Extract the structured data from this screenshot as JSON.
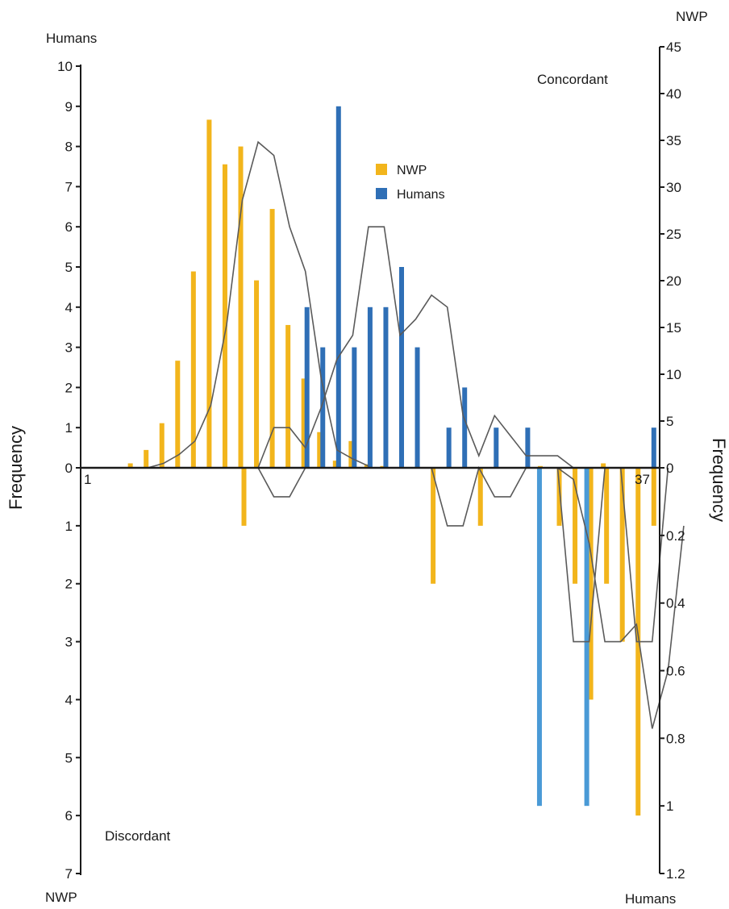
{
  "chart_data": {
    "type": "bar",
    "corner_labels": {
      "top_left": "Humans",
      "top_right": "NWP",
      "bottom_left": "NWP",
      "bottom_right": "Humans"
    },
    "annotations": {
      "concordant": "Concordant",
      "discordant": "Discordant"
    },
    "ylabel_left": "Frequency",
    "ylabel_right": "Frequency",
    "x_tick_labels": {
      "first": "1",
      "last": "37"
    },
    "legend": [
      {
        "name": "NWP",
        "color": "#f2b51c"
      },
      {
        "name": "Humans",
        "color": "#2f6fb6"
      }
    ],
    "axes": {
      "left_upper": {
        "range": [
          0,
          10
        ],
        "ticks": [
          "0",
          "1",
          "2",
          "3",
          "4",
          "5",
          "6",
          "7",
          "8",
          "9",
          "10"
        ]
      },
      "left_lower": {
        "range": [
          0,
          7
        ],
        "ticks": [
          "0",
          "1",
          "2",
          "3",
          "4",
          "5",
          "6",
          "7"
        ]
      },
      "right_upper": {
        "range": [
          0,
          45
        ],
        "ticks": [
          "0",
          "5",
          "10",
          "15",
          "20",
          "25",
          "30",
          "35",
          "40",
          "45"
        ]
      },
      "right_lower": {
        "range": [
          0,
          1.2
        ],
        "ticks": [
          "0",
          "0.2",
          "0.4",
          "0.6",
          "0.8",
          "1",
          "1.2"
        ]
      }
    },
    "colors": {
      "nwp": "#f2b51c",
      "humans_upper": "#2f6fb6",
      "humans_lower": "#4a9ad6",
      "trend": "#5a5a5a",
      "axis": "#1a1a1a"
    },
    "series": [
      {
        "name": "NWP",
        "concordant_values": [
          0,
          0,
          0,
          0.5,
          2,
          5,
          12,
          22,
          39,
          34,
          36,
          21,
          29,
          16,
          10,
          4,
          0.8,
          3,
          0.4,
          0.2,
          0,
          0,
          0,
          0,
          0,
          0,
          0,
          0,
          0,
          0.2,
          0,
          0,
          0,
          0.5,
          0,
          0,
          0
        ],
        "discordant_values": [
          0,
          0,
          0,
          0,
          0,
          0,
          0,
          0,
          0,
          0,
          1,
          0,
          0,
          0,
          0,
          0,
          0,
          0,
          0,
          0,
          0,
          0,
          2,
          0,
          0,
          1,
          0,
          0,
          0,
          0,
          1,
          2,
          4,
          2,
          3,
          6,
          1
        ]
      },
      {
        "name": "Humans",
        "concordant_values": [
          0,
          0,
          0,
          0,
          0,
          0,
          0,
          0,
          0,
          0,
          0,
          0,
          0,
          0,
          4,
          3,
          9,
          3,
          4,
          4,
          5,
          3,
          0,
          1,
          2,
          0,
          1,
          0,
          1,
          0,
          0,
          0,
          0,
          0,
          0,
          0,
          1
        ],
        "discordant_values": [
          0,
          0,
          0,
          0,
          0,
          0,
          0,
          0,
          0,
          0,
          0,
          0,
          0,
          0,
          0,
          0,
          0,
          0,
          0,
          0,
          0,
          0,
          0,
          0,
          0,
          0,
          0,
          0,
          0,
          1,
          0,
          0,
          1,
          0,
          0,
          0,
          0
        ]
      }
    ],
    "trend_lines": [
      {
        "series": "NWP concordant",
        "points": [
          [
            5,
            0
          ],
          [
            6,
            0.5
          ],
          [
            7,
            1.5
          ],
          [
            8,
            3
          ],
          [
            9,
            7
          ],
          [
            10,
            16
          ],
          [
            11,
            30
          ],
          [
            12,
            36.5
          ],
          [
            13,
            35
          ],
          [
            14,
            27
          ],
          [
            15,
            22
          ],
          [
            16,
            10
          ],
          [
            17,
            2
          ],
          [
            18,
            1
          ],
          [
            19,
            0.2
          ]
        ]
      },
      {
        "series": "Humans concordant",
        "points": [
          [
            11,
            0
          ],
          [
            12,
            0
          ],
          [
            13,
            1
          ],
          [
            14,
            1
          ],
          [
            15,
            0.5
          ],
          [
            16,
            1.5
          ],
          [
            17,
            2.7
          ],
          [
            18,
            3.3
          ],
          [
            19,
            6
          ],
          [
            20,
            6
          ],
          [
            21,
            3.3
          ],
          [
            22,
            3.7
          ],
          [
            23,
            4.3
          ],
          [
            24,
            4
          ],
          [
            25,
            1.3
          ],
          [
            26,
            0.3
          ],
          [
            27,
            1.3
          ],
          [
            28,
            0.8
          ],
          [
            29,
            0.3
          ],
          [
            30,
            0.3
          ],
          [
            31,
            0.3
          ],
          [
            32,
            0
          ]
        ]
      },
      {
        "series": "NWP discordant",
        "points": [
          [
            12,
            0
          ],
          [
            13,
            0.5
          ],
          [
            14,
            0.5
          ],
          [
            15,
            0
          ],
          [
            18,
            0
          ],
          [
            19,
            0
          ],
          [
            23,
            0
          ],
          [
            24,
            1
          ],
          [
            25,
            1
          ],
          [
            26,
            0
          ],
          [
            27,
            0.5
          ],
          [
            28,
            0.5
          ],
          [
            29,
            0
          ],
          [
            31,
            0
          ],
          [
            32,
            0.2
          ],
          [
            33,
            1.3
          ],
          [
            34,
            3
          ],
          [
            35,
            3
          ],
          [
            36,
            2.7
          ],
          [
            37,
            4.5
          ],
          [
            38,
            3.5
          ],
          [
            39,
            1
          ]
        ]
      },
      {
        "series": "Humans discordant",
        "points": [
          [
            30,
            0
          ],
          [
            31,
            0
          ],
          [
            32,
            3
          ],
          [
            33,
            3
          ],
          [
            34,
            0
          ],
          [
            35,
            0
          ],
          [
            36,
            3
          ],
          [
            37,
            3
          ],
          [
            38,
            0
          ]
        ]
      }
    ]
  }
}
